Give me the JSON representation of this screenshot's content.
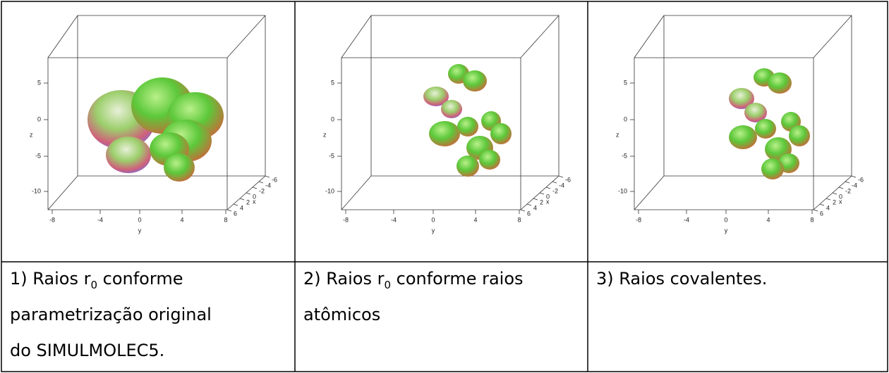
{
  "figures": [
    {
      "z_label": "z",
      "z_ticks": [
        5,
        0,
        -5,
        -10
      ],
      "y_label": "y",
      "y_ticks": [
        -8,
        -4,
        0,
        4,
        8
      ],
      "x_label": "x",
      "x_ticks": [
        -6,
        -4,
        -2,
        0,
        2,
        4,
        6
      ]
    },
    {
      "z_label": "z",
      "z_ticks": [
        5,
        0,
        -5,
        -10
      ],
      "y_label": "y",
      "y_ticks": [
        -8,
        -4,
        0,
        4,
        8
      ],
      "x_label": "x",
      "x_ticks": [
        -6,
        -4,
        -2,
        0,
        2,
        4,
        6
      ]
    },
    {
      "z_label": "z",
      "z_ticks": [
        5,
        0,
        -5,
        -10
      ],
      "y_label": "y",
      "y_ticks": [
        -8,
        -4,
        0,
        4,
        8
      ],
      "x_label": "x",
      "x_ticks": [
        -6,
        -4,
        -2,
        0,
        2,
        4,
        6
      ]
    }
  ],
  "captions": [
    {
      "lines": [
        {
          "text": "1) Raios r",
          "sub": "0",
          "after": " conforme"
        },
        {
          "text": "parametrização original"
        },
        {
          "text": "do SIMULMOLEC5."
        }
      ]
    },
    {
      "lines": [
        {
          "text": "2) Raios r",
          "sub": "0",
          "after": " conforme raios"
        },
        {
          "text": "atômicos"
        }
      ]
    },
    {
      "lines": [
        {
          "text": "3) Raios covalentes."
        }
      ]
    }
  ]
}
